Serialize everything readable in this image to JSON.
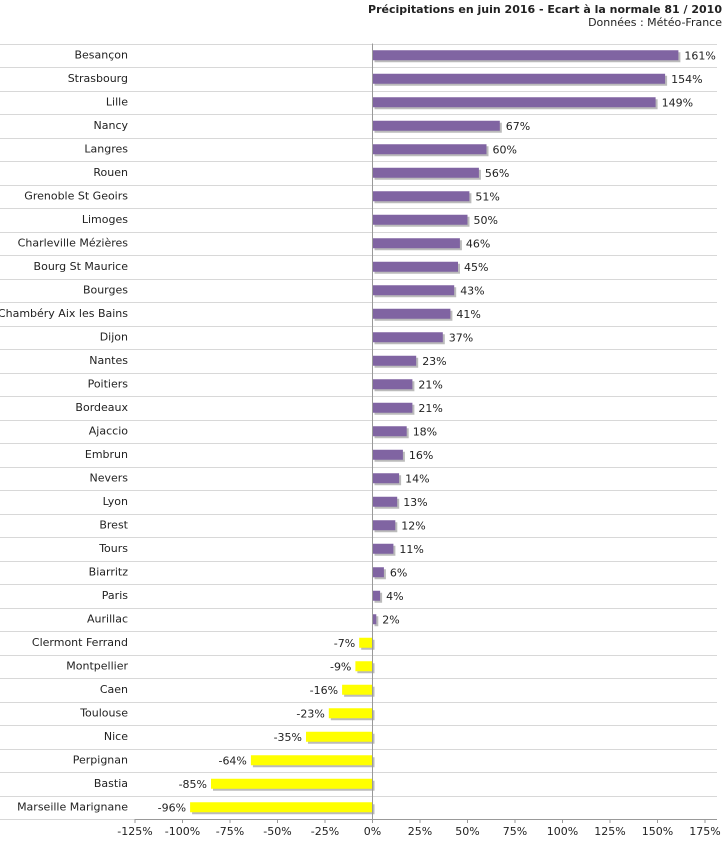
{
  "chart_data": {
    "type": "hbar",
    "title": "Précipitations en juin 2016 - Ecart à la normale 81 / 2010",
    "subtitle": "Données : Météo-France",
    "categories": [
      "Besançon",
      "Strasbourg",
      "Lille",
      "Nancy",
      "Langres",
      "Rouen",
      "Grenoble St Geoirs",
      "Limoges",
      "Charleville Mézières",
      "Bourg St Maurice",
      "Bourges",
      "Chambéry Aix les Bains",
      "Dijon",
      "Nantes",
      "Poitiers",
      "Bordeaux",
      "Ajaccio",
      "Embrun",
      "Nevers",
      "Lyon",
      "Brest",
      "Tours",
      "Biarritz",
      "Paris",
      "Aurillac",
      "Clermont Ferrand",
      "Montpellier",
      "Caen",
      "Toulouse",
      "Nice",
      "Perpignan",
      "Bastia",
      "Marseille Marignane"
    ],
    "values": [
      161,
      154,
      149,
      67,
      60,
      56,
      51,
      50,
      46,
      45,
      43,
      41,
      37,
      23,
      21,
      21,
      18,
      16,
      14,
      13,
      12,
      11,
      6,
      4,
      2,
      -7,
      -9,
      -16,
      -23,
      -35,
      -64,
      -85,
      -96
    ],
    "value_labels": [
      "161%",
      "154%",
      "149%",
      "67%",
      "60%",
      "56%",
      "51%",
      "50%",
      "46%",
      "45%",
      "43%",
      "41%",
      "37%",
      "23%",
      "21%",
      "21%",
      "18%",
      "16%",
      "14%",
      "13%",
      "12%",
      "11%",
      "6%",
      "4%",
      "2%",
      "-7%",
      "-9%",
      "-16%",
      "-23%",
      "-35%",
      "-64%",
      "-85%",
      "-96%"
    ],
    "colors": [
      "#8064a2",
      "#8064a2",
      "#8064a2",
      "#8064a2",
      "#8064a2",
      "#8064a2",
      "#8064a2",
      "#8064a2",
      "#8064a2",
      "#8064a2",
      "#8064a2",
      "#8064a2",
      "#8064a2",
      "#8064a2",
      "#8064a2",
      "#8064a2",
      "#8064a2",
      "#8064a2",
      "#8064a2",
      "#8064a2",
      "#8064a2",
      "#8064a2",
      "#8064a2",
      "#8064a2",
      "#8064a2",
      "#ffff00",
      "#ffff00",
      "#ffff00",
      "#ffff00",
      "#ffff00",
      "#ffff00",
      "#ffff00",
      "#ffff00"
    ],
    "xlim": [
      -125,
      175
    ],
    "xticks": [
      {
        "value": -125,
        "label": "-125%"
      },
      {
        "value": -100,
        "label": "-100%"
      },
      {
        "value": -75,
        "label": "-75%"
      },
      {
        "value": -50,
        "label": "-50%"
      },
      {
        "value": -25,
        "label": "-25%"
      },
      {
        "value": 0,
        "label": "0%"
      },
      {
        "value": 25,
        "label": "25%"
      },
      {
        "value": 50,
        "label": "50%"
      },
      {
        "value": 75,
        "label": "75%"
      },
      {
        "value": 100,
        "label": "100%"
      },
      {
        "value": 125,
        "label": "125%"
      },
      {
        "value": 150,
        "label": "150%"
      },
      {
        "value": 175,
        "label": "175%"
      }
    ]
  }
}
